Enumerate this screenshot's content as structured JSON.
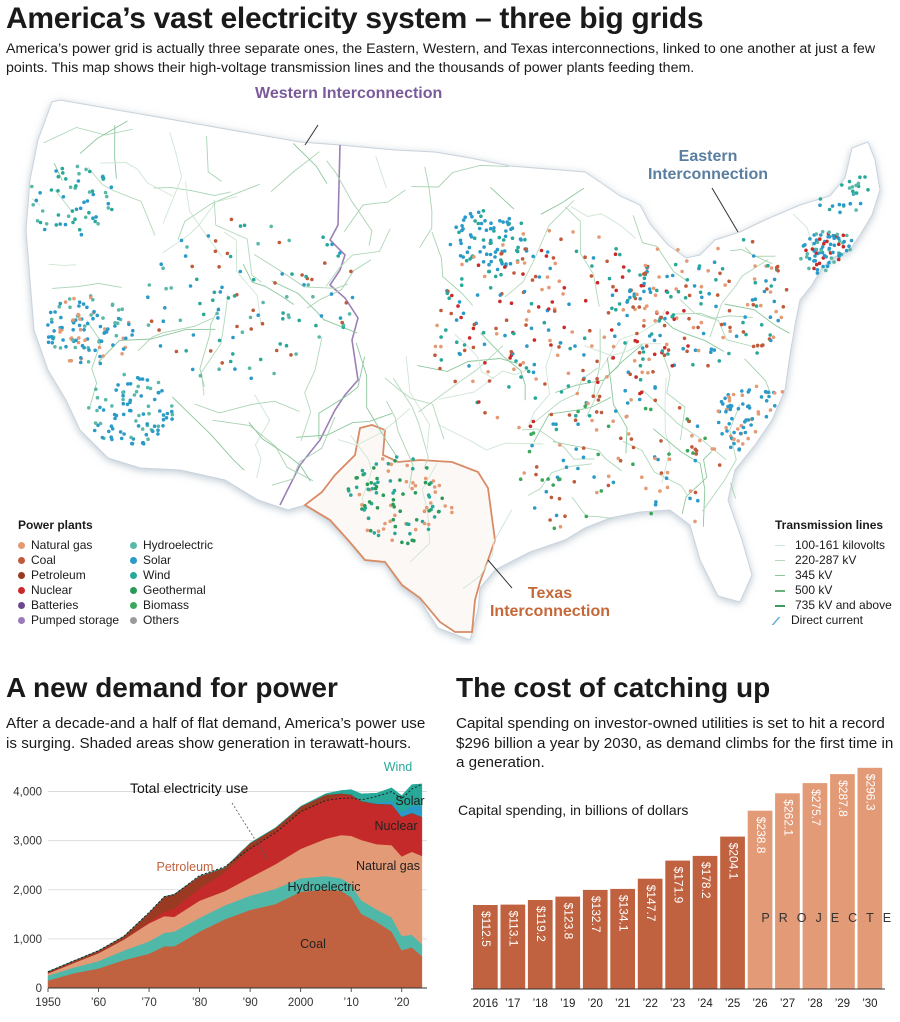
{
  "header": {
    "title": "America’s vast electricity system – three big grids",
    "subtitle": "America’s power grid is actually three separate ones, the Eastern, Western, and Texas interconnections, linked to one another at just a few points. This map shows their high-voltage transmission lines and the thousands of power plants feeding them."
  },
  "map": {
    "regions": {
      "western": "Western Interconnection",
      "eastern": "Eastern Interconnection",
      "texas": "Texas Interconnection"
    },
    "region_colors": {
      "western": "#7a5a9a",
      "eastern": "#5a7ea0",
      "texas": "#c4683a"
    },
    "plants_legend": {
      "title": "Power plants",
      "items": [
        {
          "label": "Natural gas",
          "color": "#e49a74"
        },
        {
          "label": "Coal",
          "color": "#c05a3a"
        },
        {
          "label": "Petroleum",
          "color": "#9a3a22"
        },
        {
          "label": "Nuclear",
          "color": "#cc2a2a"
        },
        {
          "label": "Batteries",
          "color": "#6a4a8a"
        },
        {
          "label": "Pumped storage",
          "color": "#9a7ab8"
        },
        {
          "label": "Hydroelectric",
          "color": "#5ab8a8"
        },
        {
          "label": "Solar",
          "color": "#2a9ac8"
        },
        {
          "label": "Wind",
          "color": "#28a898"
        },
        {
          "label": "Geothermal",
          "color": "#2a9a5a"
        },
        {
          "label": "Biomass",
          "color": "#3aa85a"
        },
        {
          "label": "Others",
          "color": "#9a9a9a"
        }
      ]
    },
    "transmission_legend": {
      "title": "Transmission lines",
      "items": [
        {
          "label": "100-161 kilovolts",
          "color": "#cfe6d4"
        },
        {
          "label": "220-287 kV",
          "color": "#b2d9bb"
        },
        {
          "label": "345 kV",
          "color": "#8cc79c"
        },
        {
          "label": "500 kV",
          "color": "#66b37c"
        },
        {
          "label": "735 kV and above",
          "color": "#3f9a5c"
        },
        {
          "label": "Direct current",
          "color": "#6ab0d8"
        }
      ]
    }
  },
  "demand": {
    "title": "A new demand for power",
    "text": "After a decade-and a half of flat demand, America’s power use is surging. Shaded areas show generation in terawatt-hours."
  },
  "cost": {
    "title": "The cost of catching up",
    "text": "Capital spending on investor-owned utilities is set to hit a record $296 billion a year by 2030, as demand climbs for the first time in a generation."
  },
  "chart_data": [
    {
      "type": "area",
      "stacked": true,
      "ylabel": "",
      "ylim": [
        0,
        4500
      ],
      "yticks": [
        0,
        1000,
        2000,
        3000,
        4000
      ],
      "ytick_labels": [
        "0",
        "1,000",
        "2,000",
        "3,000",
        "4,000"
      ],
      "xticks": [
        1950,
        1960,
        1970,
        1980,
        1990,
        2000,
        2010,
        2020
      ],
      "xtick_labels": [
        "1950",
        "’60",
        "’70",
        "’80",
        "’90",
        "2000",
        "’10",
        "’20"
      ],
      "x": [
        1950,
        1955,
        1960,
        1965,
        1970,
        1973,
        1975,
        1980,
        1985,
        1990,
        1995,
        2000,
        2005,
        2008,
        2010,
        2012,
        2015,
        2018,
        2020,
        2022,
        2024
      ],
      "series": [
        {
          "name": "Coal",
          "color": "#c0623f",
          "values": [
            155,
            300,
            400,
            570,
            700,
            850,
            850,
            1150,
            1400,
            1590,
            1710,
            1960,
            2010,
            1980,
            1850,
            1510,
            1350,
            1150,
            770,
            830,
            650
          ]
        },
        {
          "name": "Hydroelectric",
          "color": "#4fb8a8",
          "values": [
            100,
            115,
            150,
            195,
            250,
            275,
            300,
            280,
            285,
            290,
            310,
            275,
            270,
            255,
            260,
            275,
            250,
            290,
            290,
            255,
            240
          ]
        },
        {
          "name": "Natural gas",
          "color": "#e39a77",
          "values": [
            45,
            95,
            160,
            220,
            370,
            340,
            300,
            350,
            290,
            370,
            500,
            600,
            760,
            880,
            990,
            1230,
            1330,
            1470,
            1620,
            1690,
            1800
          ]
        },
        {
          "name": "Nuclear",
          "color": "#c42a2a",
          "values": [
            0,
            0,
            2,
            5,
            25,
            85,
            170,
            250,
            380,
            580,
            670,
            750,
            780,
            806,
            807,
            770,
            797,
            807,
            790,
            772,
            780
          ]
        },
        {
          "name": "Petroleum",
          "color": "#9a3a22",
          "values": [
            35,
            40,
            50,
            65,
            190,
            310,
            290,
            250,
            100,
            120,
            70,
            110,
            120,
            45,
            35,
            25,
            25,
            25,
            17,
            20,
            15
          ]
        },
        {
          "name": "Solar",
          "color": "#2a9ac8",
          "values": [
            0,
            0,
            0,
            0,
            0,
            0,
            0,
            0,
            0,
            0,
            0,
            0,
            0,
            0,
            2,
            4,
            25,
            65,
            90,
            145,
            220
          ]
        },
        {
          "name": "Wind",
          "color": "#28a898",
          "values": [
            0,
            0,
            0,
            0,
            0,
            0,
            0,
            0,
            0,
            3,
            3,
            6,
            18,
            55,
            95,
            140,
            190,
            270,
            340,
            430,
            450
          ]
        }
      ],
      "total_label": "Total electricity use",
      "total_line": [
        330,
        550,
        760,
        1050,
        1540,
        1860,
        1900,
        2290,
        2470,
        2840,
        3160,
        3590,
        3820,
        3860,
        3870,
        3830,
        3900,
        4000,
        3850,
        4050,
        4150
      ]
    },
    {
      "type": "bar",
      "ylabel": "Capital spending, in billions of dollars",
      "categories": [
        "2016",
        "’17",
        "’18",
        "’19",
        "’20",
        "’21",
        "’22",
        "’23",
        "’24",
        "’25",
        "’26",
        "’27",
        "’28",
        "’29",
        "’30"
      ],
      "values": [
        112.5,
        113.1,
        119.2,
        123.8,
        132.7,
        134.1,
        147.7,
        171.9,
        178.2,
        204.1,
        238.8,
        262.1,
        275.7,
        287.8,
        296.3
      ],
      "value_labels": [
        "$112.5",
        "$113.1",
        "$119.2",
        "$123.8",
        "$132.7",
        "$134.1",
        "$147.7",
        "$171.9",
        "$178.2",
        "$204.1",
        "$238.8",
        "$262.1",
        "$275.7",
        "$287.8",
        "$296.3"
      ],
      "projected": [
        false,
        false,
        false,
        false,
        false,
        false,
        false,
        false,
        false,
        false,
        true,
        true,
        true,
        true,
        true
      ],
      "projected_label": "PROJECTED",
      "colors": {
        "actual": "#c0623f",
        "projected": "#e39a77"
      },
      "ylim": [
        0,
        300
      ]
    }
  ]
}
